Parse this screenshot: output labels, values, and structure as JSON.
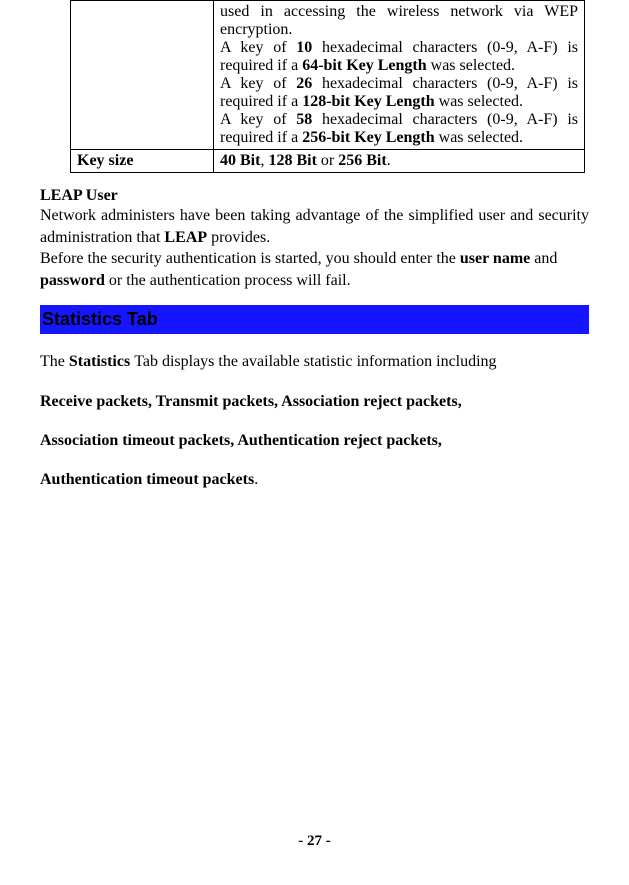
{
  "table": {
    "row1": {
      "line1_pre": "used in accessing the wireless network via WEP encryption.",
      "line2_a": "A key of ",
      "line2_b": "10",
      "line2_c": " hexadecimal characters (0-9, A-F) is required if a ",
      "line2_d": "64-bit Key Length",
      "line2_e": " was selected.",
      "line3_a": "A key of ",
      "line3_b": "26",
      "line3_c": " hexadecimal characters (0-9, A-F) is required if a ",
      "line3_d": "128-bit Key Length",
      "line3_e": " was selected.",
      "line4_a": "A key of ",
      "line4_b": "58",
      "line4_c": " hexadecimal characters (0-9, A-F) is required if a ",
      "line4_d": "256-bit Key Length",
      "line4_e": " was selected."
    },
    "row2": {
      "left": "Key size",
      "right_a": "40 Bit",
      "right_b": ", ",
      "right_c": "128 Bit",
      "right_d": " or ",
      "right_e": "256 Bit",
      "right_f": "."
    }
  },
  "leap": {
    "heading": "LEAP User",
    "para1_a": "Network administers have been taking advantage of the simplified user and security administration that ",
    "para1_b": "LEAP",
    "para1_c": " provides.",
    "para2_a": "Before the security authentication is started, you should enter the ",
    "para2_b": "user name",
    "para2_c": " and ",
    "para2_d": "password",
    "para2_e": " or the authentication process will fail."
  },
  "tab": {
    "title": "Statistics Tab"
  },
  "stats": {
    "p1_a": "The ",
    "p1_b": "Statistics ",
    "p1_c": "Tab displays the available statistic information including",
    "p2": "Receive packets, Transmit packets, Association reject packets,",
    "p3": "Association timeout packets, Authentication reject packets,",
    "p4_a": "Authentication timeout packets",
    "p4_b": "."
  },
  "pagenum": "- 27 -"
}
